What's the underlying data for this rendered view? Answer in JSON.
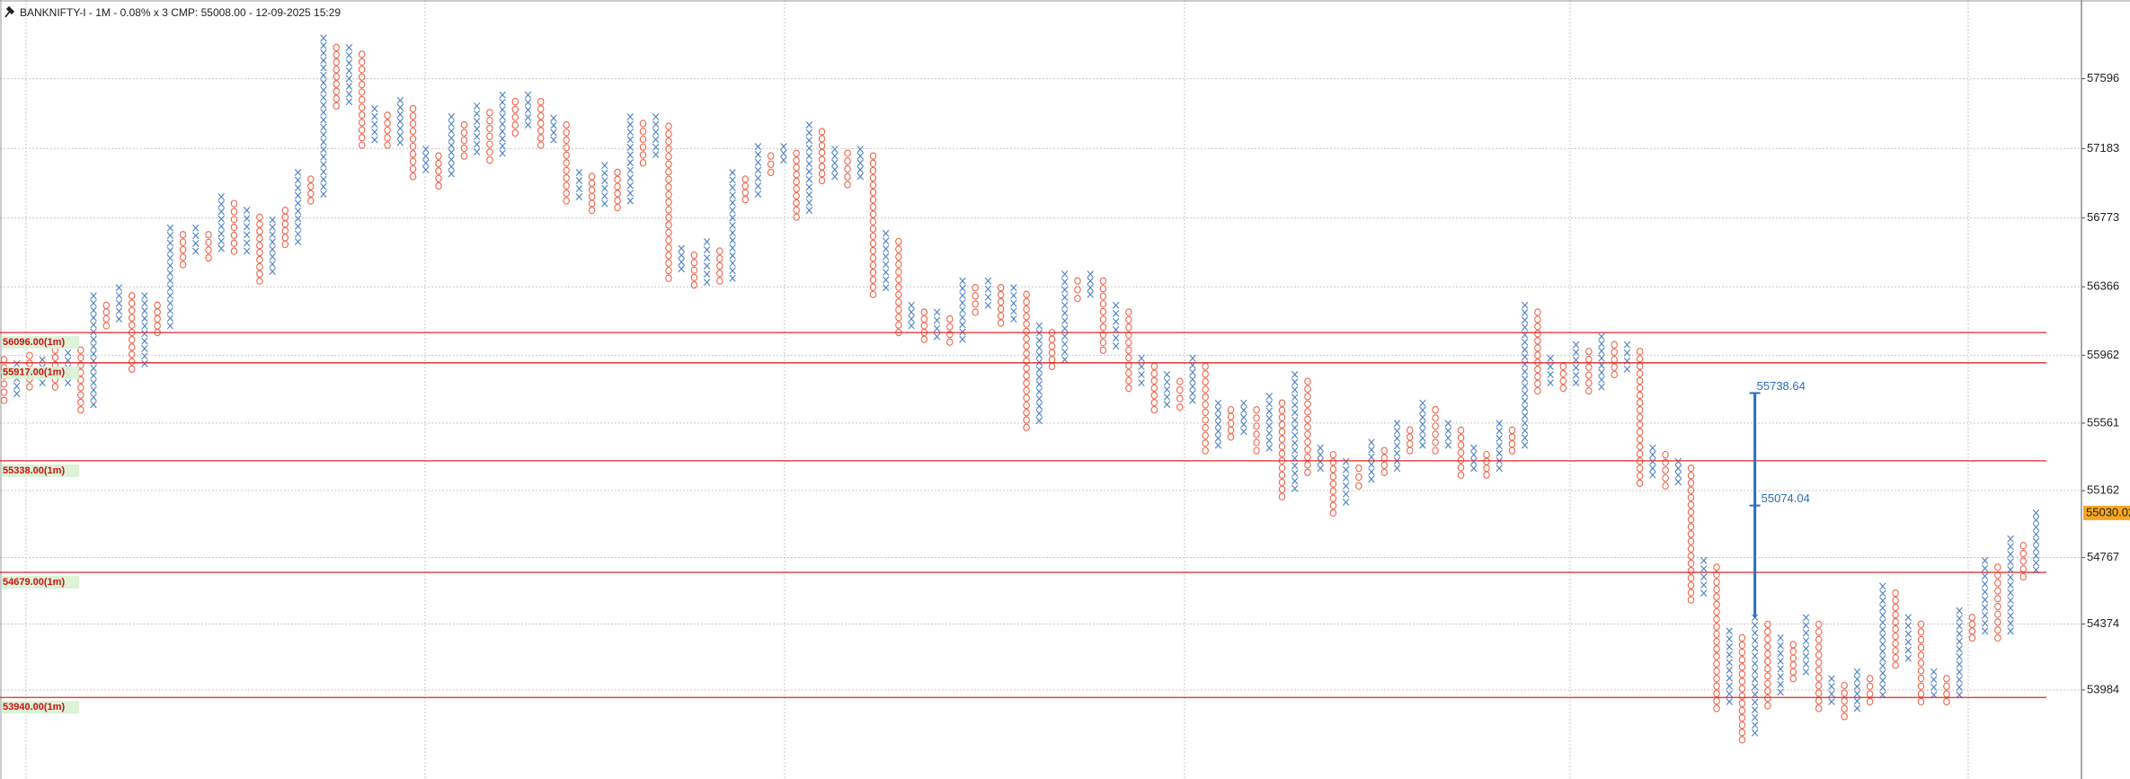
{
  "chart_data": {
    "type": "pnf",
    "title": "BANKNIFTY-I - 1M - 0.08% x 3 CMP: 55008.00 - 12-09-2025 15:29",
    "ylim": [
      53458,
      58061
    ],
    "yticks": [
      57596,
      57183,
      56773,
      56366,
      55962,
      55561,
      55162,
      54767,
      54374,
      53984
    ],
    "grid": true,
    "x_color": "#4a7fc4",
    "o_color": "#f0644c",
    "kinds": [
      "O",
      "X",
      "O",
      "X",
      "O",
      "X",
      "O",
      "X",
      "O",
      "X",
      "O",
      "X",
      "O",
      "X",
      "O",
      "X",
      "O",
      "X",
      "O",
      "X",
      "O",
      "X",
      "O",
      "X",
      "O",
      "X",
      "O",
      "X",
      "O",
      "X",
      "O",
      "X",
      "O",
      "X",
      "O",
      "X",
      "O",
      "X",
      "O",
      "X",
      "O",
      "X",
      "O",
      "X",
      "O",
      "X",
      "O",
      "X",
      "O",
      "X",
      "O",
      "X",
      "O",
      "X",
      "O",
      "X",
      "O",
      "X",
      "O",
      "X",
      "O",
      "X",
      "O",
      "X",
      "O",
      "X",
      "O",
      "X",
      "O",
      "X",
      "O",
      "X",
      "O",
      "X",
      "O",
      "X",
      "O",
      "X",
      "O",
      "X",
      "O",
      "X",
      "O",
      "X",
      "O",
      "X",
      "O",
      "X",
      "O",
      "X",
      "O",
      "X",
      "O",
      "X",
      "O",
      "X",
      "O",
      "X",
      "O",
      "X",
      "O",
      "X",
      "O",
      "X",
      "O",
      "X",
      "O",
      "X",
      "O",
      "X",
      "O",
      "X",
      "O",
      "X",
      "O",
      "X",
      "O",
      "X",
      "O",
      "X",
      "O",
      "X",
      "O",
      "X",
      "O",
      "X",
      "O",
      "X",
      "O",
      "X",
      "O",
      "X",
      "O",
      "X",
      "O",
      "X",
      "O",
      "X",
      "O",
      "X",
      "O",
      "X",
      "O",
      "X",
      "O",
      "X",
      "O",
      "X",
      "O",
      "X",
      "O",
      "X",
      "O",
      "X",
      "O",
      "X",
      "O",
      "X",
      "O",
      "X"
    ],
    "highs": [
      55936,
      55912,
      55960,
      55936,
      55992,
      55976,
      55992,
      56313,
      56257,
      56361,
      56313,
      56313,
      56257,
      56714,
      56674,
      56714,
      56674,
      56898,
      56858,
      56818,
      56778,
      56762,
      56818,
      57042,
      57002,
      57836,
      57780,
      57780,
      57740,
      57419,
      57379,
      57468,
      57419,
      57179,
      57139,
      57371,
      57323,
      57435,
      57395,
      57500,
      57460,
      57500,
      57460,
      57363,
      57323,
      57042,
      57018,
      57083,
      57042,
      57371,
      57331,
      57371,
      57315,
      56593,
      56553,
      56633,
      56577,
      57042,
      57002,
      57195,
      57139,
      57195,
      57155,
      57323,
      57283,
      57179,
      57155,
      57179,
      57139,
      56682,
      56633,
      56257,
      56216,
      56216,
      56176,
      56401,
      56361,
      56401,
      56361,
      56361,
      56321,
      56136,
      56096,
      56441,
      56401,
      56441,
      56401,
      56257,
      56216,
      55944,
      55896,
      55848,
      55807,
      55944,
      55896,
      55679,
      55639,
      55679,
      55639,
      55719,
      55679,
      55848,
      55807,
      55414,
      55374,
      55334,
      55294,
      55447,
      55398,
      55559,
      55519,
      55679,
      55639,
      55559,
      55519,
      55414,
      55374,
      55559,
      55519,
      56257,
      56216,
      55944,
      55896,
      56024,
      55984,
      56072,
      56024,
      56024,
      55984,
      55414,
      55374,
      55334,
      55294,
      54749,
      54709,
      54332,
      54292,
      54412,
      54372,
      54292,
      54252,
      54412,
      54372,
      54051,
      54011,
      54091,
      54051,
      54597,
      54556,
      54412,
      54372,
      54091,
      54051,
      54452,
      54412,
      54749,
      54709,
      54877,
      54837,
      55030
    ],
    "lows": [
      55695,
      55735,
      55775,
      55799,
      55775,
      55799,
      55639,
      55671,
      56136,
      56176,
      55880,
      55912,
      56096,
      56136,
      56497,
      56577,
      56537,
      56593,
      56577,
      56577,
      56401,
      56457,
      56617,
      56633,
      56874,
      56914,
      57435,
      57460,
      57203,
      57235,
      57203,
      57219,
      57018,
      57058,
      56962,
      57034,
      57139,
      57163,
      57115,
      57155,
      57275,
      57323,
      57203,
      57235,
      56874,
      56898,
      56818,
      56858,
      56834,
      56874,
      57099,
      57147,
      56417,
      56473,
      56377,
      56393,
      56401,
      56417,
      56882,
      56914,
      57042,
      57115,
      56778,
      56818,
      56994,
      57018,
      56970,
      57018,
      56321,
      56361,
      56096,
      56136,
      56056,
      56072,
      56040,
      56056,
      56216,
      56257,
      56152,
      56176,
      55535,
      55575,
      55896,
      55936,
      56297,
      56321,
      55992,
      56016,
      55767,
      55799,
      55639,
      55671,
      55655,
      55695,
      55398,
      55430,
      55479,
      55511,
      55398,
      55414,
      55126,
      55174,
      55270,
      55294,
      55030,
      55094,
      55190,
      55230,
      55270,
      55294,
      55398,
      55430,
      55398,
      55430,
      55254,
      55294,
      55254,
      55294,
      55398,
      55430,
      55751,
      55799,
      55767,
      55799,
      55751,
      55775,
      55848,
      55880,
      55206,
      55254,
      55190,
      55214,
      54516,
      54556,
      53875,
      53915,
      53690,
      53730,
      53891,
      53971,
      54051,
      54091,
      53875,
      53915,
      53827,
      53875,
      53915,
      53955,
      54131,
      54171,
      53915,
      53955,
      53915,
      53955,
      54292,
      54332,
      54292,
      54332,
      54653,
      54693
    ],
    "levels": [
      {
        "value": 56096,
        "label": "56096.00(1m)"
      },
      {
        "value": 55917,
        "label": "55917.00(1m)"
      },
      {
        "value": 55338,
        "label": "55338.00(1m)"
      },
      {
        "value": 54679,
        "label": "54679.00(1m)"
      },
      {
        "value": 53940,
        "label": "53940.00(1m)"
      }
    ],
    "cmp_tag": {
      "value": 55030.02,
      "label": "55030.02"
    },
    "measure": {
      "high": {
        "value": 55738.64,
        "label": "55738.64"
      },
      "mid": {
        "value": 55074.04,
        "label": "55074.04"
      },
      "low": 54412
    }
  }
}
